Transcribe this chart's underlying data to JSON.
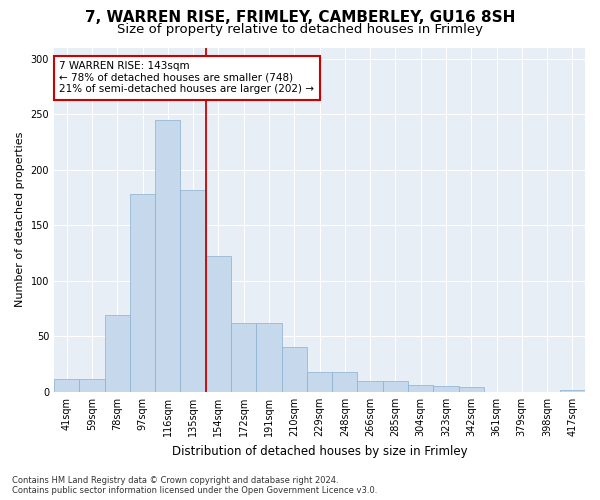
{
  "title": "7, WARREN RISE, FRIMLEY, CAMBERLEY, GU16 8SH",
  "subtitle": "Size of property relative to detached houses in Frimley",
  "xlabel": "Distribution of detached houses by size in Frimley",
  "ylabel": "Number of detached properties",
  "categories": [
    "41sqm",
    "59sqm",
    "78sqm",
    "97sqm",
    "116sqm",
    "135sqm",
    "154sqm",
    "172sqm",
    "191sqm",
    "210sqm",
    "229sqm",
    "248sqm",
    "266sqm",
    "285sqm",
    "304sqm",
    "323sqm",
    "342sqm",
    "361sqm",
    "379sqm",
    "398sqm",
    "417sqm"
  ],
  "values": [
    12,
    12,
    69,
    178,
    245,
    182,
    122,
    62,
    62,
    40,
    18,
    18,
    10,
    10,
    6,
    5,
    4,
    0,
    0,
    0,
    2
  ],
  "bar_color": "#c5d8ec",
  "bar_edge_color": "#8ab0d0",
  "vline_color": "#cc0000",
  "vline_pos": 5.5,
  "annotation_text": "7 WARREN RISE: 143sqm\n← 78% of detached houses are smaller (748)\n21% of semi-detached houses are larger (202) →",
  "annotation_box_color": "#ffffff",
  "annotation_box_edge": "#cc0000",
  "ylim": [
    0,
    310
  ],
  "yticks": [
    0,
    50,
    100,
    150,
    200,
    250,
    300
  ],
  "background_color": "#e8eef5",
  "grid_color": "#ffffff",
  "footer_text": "Contains HM Land Registry data © Crown copyright and database right 2024.\nContains public sector information licensed under the Open Government Licence v3.0.",
  "title_fontsize": 11,
  "subtitle_fontsize": 9.5,
  "xlabel_fontsize": 8.5,
  "ylabel_fontsize": 8,
  "annot_fontsize": 7.5,
  "tick_fontsize": 7
}
